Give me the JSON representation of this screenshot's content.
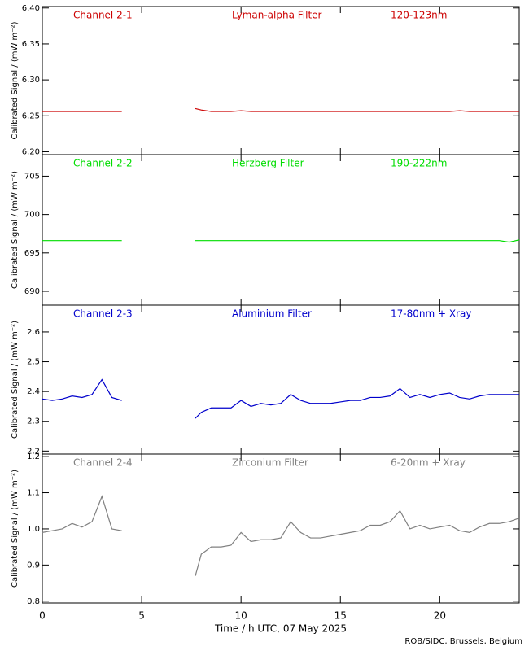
{
  "chart_data": [
    {
      "type": "line",
      "annotations": [
        "Channel 2-1",
        "Lyman-alpha Filter",
        "120-123nm"
      ],
      "ylabel": "Calibrated Signal / (mW m⁻²)",
      "color": "#cc0000",
      "xlim": [
        0,
        24
      ],
      "ylim": [
        6.196,
        6.402
      ],
      "yticks": [
        {
          "value": 6.2,
          "label": "6.20"
        },
        6.25,
        {
          "value": 6.3,
          "label": "6.30"
        },
        6.35,
        {
          "value": 6.4,
          "label": "6.40"
        }
      ],
      "x": [
        0,
        0.5,
        1,
        1.5,
        2,
        2.5,
        3,
        3.5,
        4,
        5,
        6,
        7,
        7.7,
        8,
        8.5,
        9,
        9.5,
        10,
        10.5,
        11,
        11.5,
        12,
        12.5,
        13,
        13.5,
        14,
        14.5,
        15,
        15.5,
        16,
        16.5,
        17,
        17.5,
        18,
        18.5,
        19,
        19.5,
        20,
        20.5,
        21,
        21.5,
        22,
        22.5,
        23,
        23.5,
        24
      ],
      "values": [
        6.256,
        6.256,
        6.256,
        6.256,
        6.256,
        6.256,
        6.256,
        6.256,
        6.256,
        null,
        null,
        null,
        6.26,
        6.258,
        6.256,
        6.256,
        6.256,
        6.257,
        6.256,
        6.256,
        6.256,
        6.256,
        6.256,
        6.256,
        6.256,
        6.256,
        6.256,
        6.256,
        6.256,
        6.256,
        6.256,
        6.256,
        6.256,
        6.256,
        6.256,
        6.256,
        6.256,
        6.256,
        6.256,
        6.257,
        6.256,
        6.256,
        6.256,
        6.256,
        6.256,
        6.256
      ]
    },
    {
      "type": "line",
      "annotations": [
        "Channel 2-2",
        "Herzberg Filter",
        "190-222nm"
      ],
      "ylabel": "Calibrated Signal / (mW m⁻²)",
      "color": "#00dd00",
      "xlim": [
        0,
        24
      ],
      "ylim": [
        688.2,
        707.8
      ],
      "yticks": [
        690,
        695,
        700,
        705
      ],
      "x": [
        0,
        0.5,
        1,
        1.5,
        2,
        2.5,
        3,
        3.5,
        4,
        5,
        6,
        7,
        7.7,
        8,
        8.5,
        9,
        9.5,
        10,
        10.5,
        11,
        11.5,
        12,
        12.5,
        13,
        13.5,
        14,
        14.5,
        15,
        15.5,
        16,
        16.5,
        17,
        17.5,
        18,
        18.5,
        19,
        19.5,
        20,
        20.5,
        21,
        21.5,
        22,
        22.5,
        23,
        23.5,
        24
      ],
      "values": [
        696.6,
        696.6,
        696.6,
        696.6,
        696.6,
        696.6,
        696.6,
        696.6,
        696.6,
        null,
        null,
        null,
        696.6,
        696.6,
        696.6,
        696.6,
        696.6,
        696.6,
        696.6,
        696.6,
        696.6,
        696.6,
        696.6,
        696.6,
        696.6,
        696.6,
        696.6,
        696.6,
        696.6,
        696.6,
        696.6,
        696.6,
        696.6,
        696.6,
        696.6,
        696.6,
        696.6,
        696.6,
        696.6,
        696.6,
        696.6,
        696.6,
        696.6,
        696.6,
        696.4,
        696.7
      ]
    },
    {
      "type": "line",
      "annotations": [
        "Channel 2-3",
        "Aluminium Filter",
        "17-80nm + Xray"
      ],
      "ylabel": "Calibrated Signal / (mW m⁻²)",
      "color": "#0000cc",
      "xlim": [
        0,
        24
      ],
      "ylim": [
        2.19,
        2.69
      ],
      "yticks": [
        2.2,
        2.3,
        2.4,
        2.5,
        2.6
      ],
      "x": [
        0,
        0.5,
        1,
        1.5,
        2,
        2.5,
        3,
        3.5,
        4,
        5,
        6,
        7,
        7.7,
        8,
        8.5,
        9,
        9.5,
        10,
        10.5,
        11,
        11.5,
        12,
        12.5,
        13,
        13.5,
        14,
        14.5,
        15,
        15.5,
        16,
        16.5,
        17,
        17.5,
        18,
        18.5,
        19,
        19.5,
        20,
        20.5,
        21,
        21.5,
        22,
        22.5,
        23,
        23.5,
        24
      ],
      "values": [
        2.375,
        2.37,
        2.375,
        2.385,
        2.38,
        2.39,
        2.44,
        2.38,
        2.37,
        null,
        null,
        null,
        2.31,
        2.33,
        2.345,
        2.345,
        2.345,
        2.37,
        2.35,
        2.36,
        2.355,
        2.36,
        2.39,
        2.37,
        2.36,
        2.36,
        2.36,
        2.365,
        2.37,
        2.37,
        2.38,
        2.38,
        2.385,
        2.41,
        2.38,
        2.39,
        2.38,
        2.39,
        2.395,
        2.38,
        2.375,
        2.385,
        2.39,
        2.39,
        2.39,
        2.39
      ]
    },
    {
      "type": "line",
      "annotations": [
        "Channel 2-4",
        "Zirconium Filter",
        "6-20nm + Xray"
      ],
      "ylabel": "Calibrated Signal / (mW m⁻²)",
      "color": "#808080",
      "xlim": [
        0,
        24
      ],
      "ylim": [
        0.795,
        1.207
      ],
      "yticks": [
        0.8,
        0.9,
        {
          "value": 1.0,
          "label": "1.0"
        },
        1.1,
        1.2
      ],
      "xticks": [
        0,
        5,
        10,
        15,
        20
      ],
      "xlabel": "Time / h UTC, 07 May 2025",
      "x": [
        0,
        0.5,
        1,
        1.5,
        2,
        2.5,
        3,
        3.5,
        4,
        5,
        6,
        7,
        7.7,
        8,
        8.5,
        9,
        9.5,
        10,
        10.5,
        11,
        11.5,
        12,
        12.5,
        13,
        13.5,
        14,
        14.5,
        15,
        15.5,
        16,
        16.5,
        17,
        17.5,
        18,
        18.5,
        19,
        19.5,
        20,
        20.5,
        21,
        21.5,
        22,
        22.5,
        23,
        23.5,
        24
      ],
      "values": [
        0.99,
        0.995,
        1.0,
        1.015,
        1.005,
        1.02,
        1.09,
        1.0,
        0.995,
        null,
        null,
        null,
        0.87,
        0.93,
        0.95,
        0.95,
        0.955,
        0.99,
        0.965,
        0.97,
        0.97,
        0.975,
        1.02,
        0.99,
        0.975,
        0.975,
        0.98,
        0.985,
        0.99,
        0.995,
        1.01,
        1.01,
        1.02,
        1.05,
        1.0,
        1.01,
        1.0,
        1.005,
        1.01,
        0.995,
        0.99,
        1.005,
        1.015,
        1.015,
        1.02,
        1.03
      ]
    }
  ],
  "footer": "ROB/SIDC, Brussels, Belgium"
}
